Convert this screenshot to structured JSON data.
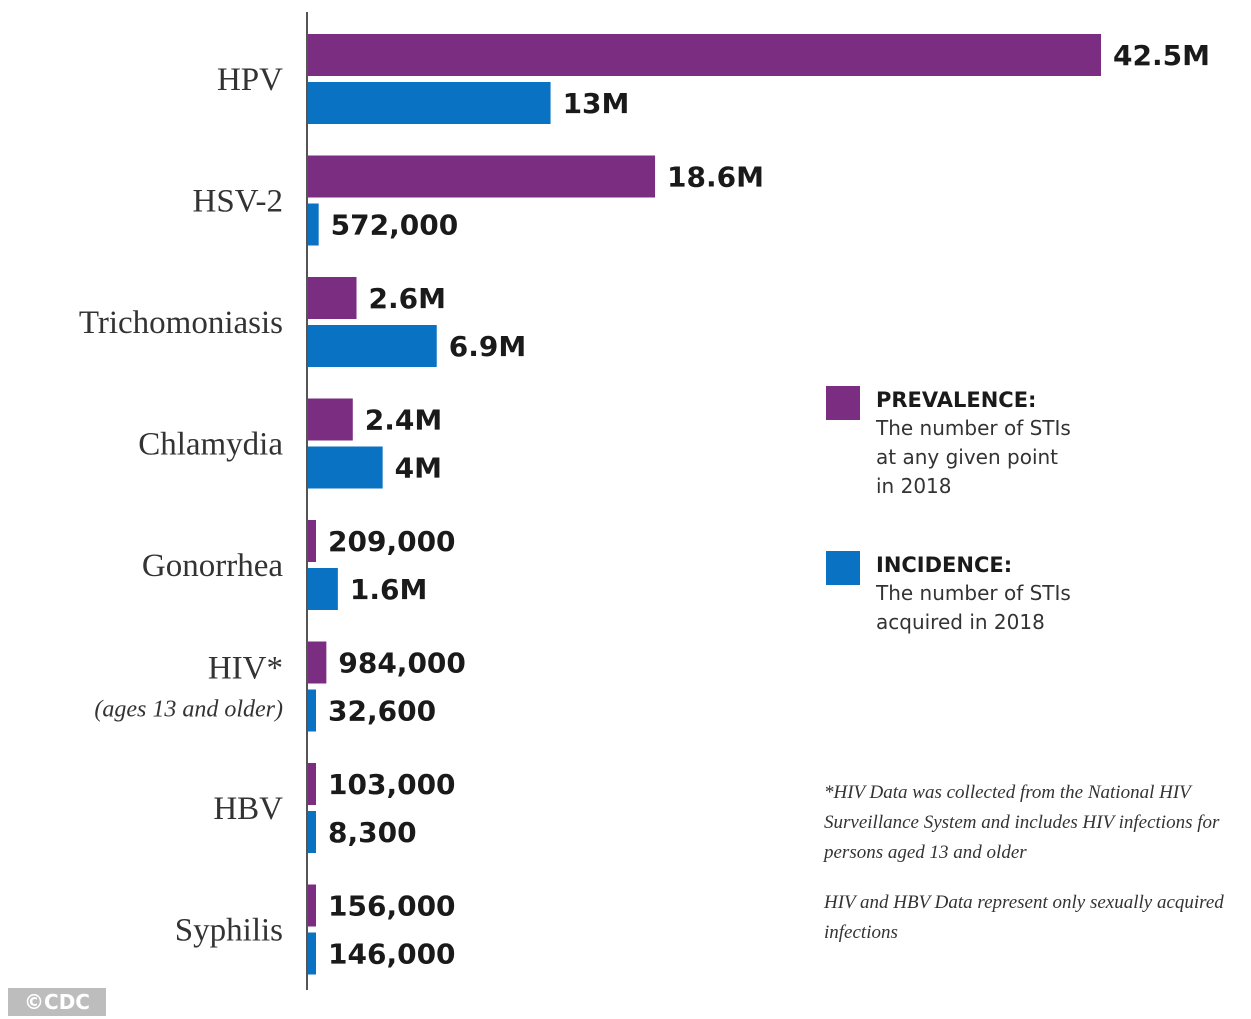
{
  "chart_data": {
    "type": "bar",
    "orientation": "horizontal",
    "categories": [
      "HPV",
      "HSV-2",
      "Trichomoniasis",
      "Chlamydia",
      "Gonorrhea",
      "HIV*",
      "HBV",
      "Syphilis"
    ],
    "category_sublabels": [
      "",
      "",
      "",
      "",
      "",
      "(ages 13 and older)",
      "",
      ""
    ],
    "series": [
      {
        "name": "PREVALENCE:",
        "color": "#7b2d82",
        "values": [
          42500000,
          18600000,
          2600000,
          2400000,
          209000,
          984000,
          103000,
          156000
        ],
        "labels": [
          "42.5M",
          "18.6M",
          "2.6M",
          "2.4M",
          "209,000",
          "984,000",
          "103,000",
          "156,000"
        ]
      },
      {
        "name": "INCIDENCE:",
        "color": "#0a72c2",
        "values": [
          13000000,
          572000,
          6900000,
          4000000,
          1600000,
          32600,
          8300,
          146000
        ],
        "labels": [
          "13M",
          "572,000",
          "6.9M",
          "4M",
          "1.6M",
          "32,600",
          "8,300",
          "146,000"
        ]
      }
    ],
    "title": "",
    "xlabel": "",
    "ylabel": ""
  },
  "legend": {
    "items": [
      {
        "title": "PREVALENCE:",
        "description": "The number of STIs\nat any given point\nin 2018",
        "color": "#7b2d82"
      },
      {
        "title": "INCIDENCE:",
        "description": "The number of STIs\nacquired in 2018",
        "color": "#0a72c2"
      }
    ]
  },
  "footnotes": [
    "*HIV Data was collected from the National HIV Surveillance System and includes HIV infections for persons aged 13 and older",
    "HIV and HBV Data represent only sexually acquired infections"
  ],
  "credit": "©CDC"
}
